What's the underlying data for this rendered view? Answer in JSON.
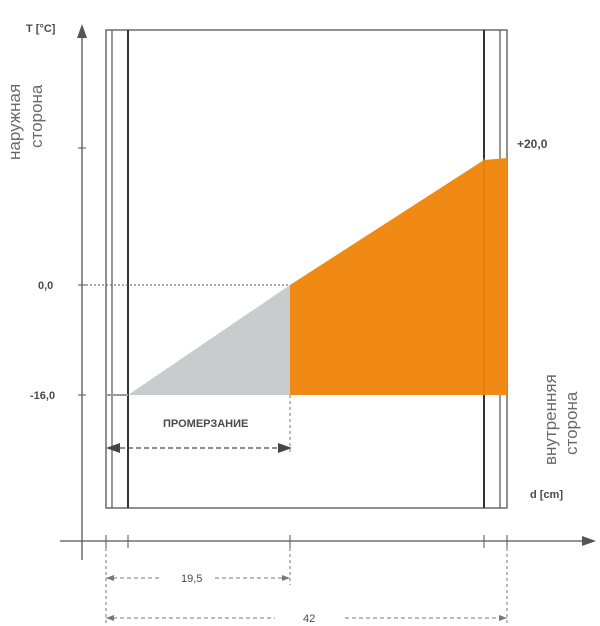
{
  "labels": {
    "t_axis": "T [°C]",
    "d_axis": "d [cm]",
    "outer_line1": "наружная",
    "outer_line2": "сторона",
    "inner_line1": "внутренняя",
    "inner_line2": "сторона",
    "freezing": "ПРОМЕРЗАНИЕ",
    "t_zero": "0,0",
    "t_outer": "-16,0",
    "t_inner": "+20,0",
    "d_freeze": "19,5",
    "d_total": "42"
  },
  "colors": {
    "frozen_zone": "#c9cbcd",
    "warm_zone": "#f08a14",
    "inner_label": "#f08a14",
    "lines": "#333333"
  }
}
